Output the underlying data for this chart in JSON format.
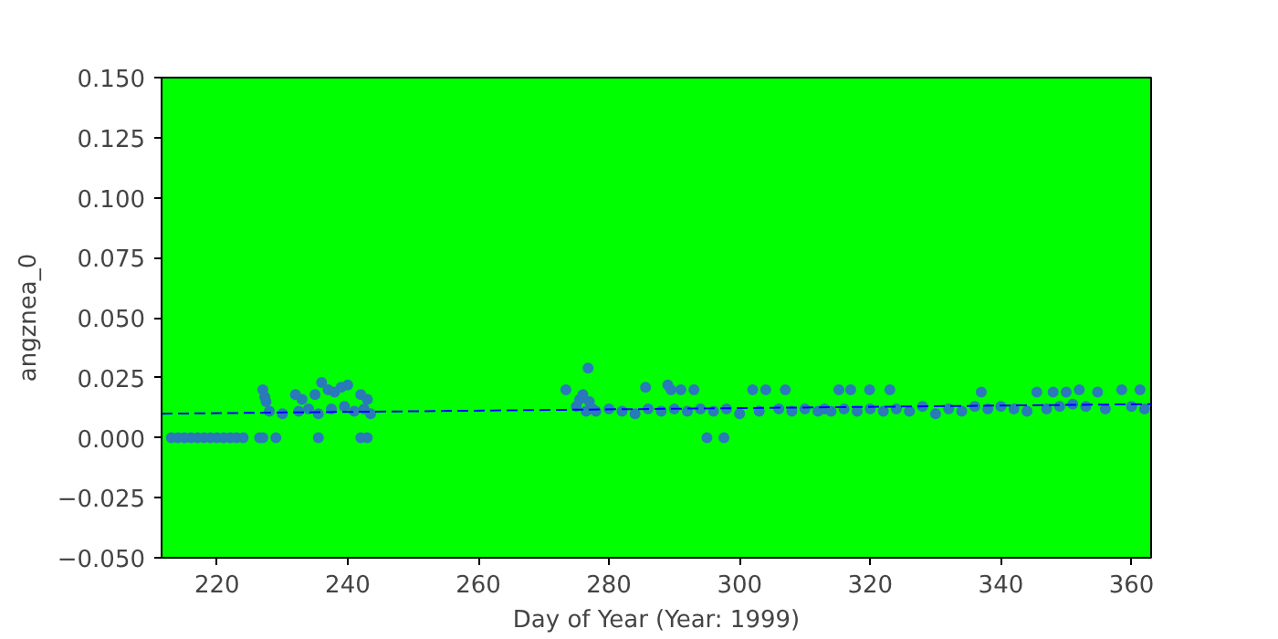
{
  "chart_data": {
    "type": "scatter",
    "xlabel": "Day of Year (Year: 1999)",
    "ylabel": "angznea_0",
    "xlim": [
      211.5,
      363
    ],
    "ylim": [
      -0.05,
      0.15
    ],
    "xticks": [
      220,
      240,
      260,
      280,
      300,
      320,
      340,
      360
    ],
    "yticks": [
      {
        "value": -0.05,
        "label": "−0.050"
      },
      {
        "value": -0.025,
        "label": "−0.025"
      },
      {
        "value": 0,
        "label": "0.000"
      },
      {
        "value": 0.025,
        "label": "0.025"
      },
      {
        "value": 0.05,
        "label": "0.050"
      },
      {
        "value": 0.075,
        "label": "0.075"
      },
      {
        "value": 0.1,
        "label": "0.100"
      },
      {
        "value": 0.125,
        "label": "0.125"
      },
      {
        "value": 0.15,
        "label": "0.150"
      }
    ],
    "grid": false,
    "series": [
      {
        "color": "#2a7ab9",
        "marker": "circle",
        "x": [
          213,
          214,
          215,
          216,
          217,
          218,
          219,
          220,
          221,
          222,
          223,
          224,
          226.5,
          227,
          229,
          235.5,
          242,
          243,
          227,
          227.3,
          227.5,
          228,
          230,
          232,
          232.5,
          233,
          234,
          235,
          235.5,
          236,
          237,
          237.5,
          238,
          239,
          239.5,
          240,
          241,
          242,
          242.5,
          243,
          243.5,
          273.4,
          276.8,
          275,
          275.5,
          276,
          276.5,
          277,
          277.5,
          278,
          280,
          282,
          284,
          285.6,
          286,
          288,
          289,
          289.5,
          290,
          291,
          292,
          293,
          294,
          295,
          296,
          297.6,
          298,
          300,
          302,
          303,
          304,
          306,
          307,
          308,
          310,
          312,
          313,
          315.2,
          317,
          319.9,
          323,
          314,
          316,
          318,
          320,
          322,
          324,
          326,
          328,
          330,
          332,
          334,
          336,
          337,
          338,
          340,
          342,
          344,
          345.5,
          347,
          348,
          349,
          350,
          351,
          352,
          353,
          354.8,
          356,
          358.5,
          360,
          361.3,
          362
        ],
        "values": [
          0,
          0,
          0,
          0,
          0,
          0,
          0,
          0,
          0,
          0,
          0,
          0,
          0,
          0,
          0,
          0,
          0,
          0,
          0.02,
          0.017,
          0.015,
          0.011,
          0.01,
          0.018,
          0.011,
          0.016,
          0.012,
          0.018,
          0.01,
          0.023,
          0.02,
          0.012,
          0.019,
          0.021,
          0.013,
          0.022,
          0.011,
          0.018,
          0.012,
          0.016,
          0.01,
          0.02,
          0.029,
          0.013,
          0.016,
          0.018,
          0.011,
          0.015,
          0.012,
          0.011,
          0.012,
          0.011,
          0.01,
          0.021,
          0.012,
          0.011,
          0.022,
          0.02,
          0.012,
          0.02,
          0.011,
          0.02,
          0.012,
          0,
          0.011,
          0,
          0.012,
          0.01,
          0.02,
          0.011,
          0.02,
          0.012,
          0.02,
          0.011,
          0.012,
          0.011,
          0.012,
          0.02,
          0.02,
          0.02,
          0.02,
          0.011,
          0.012,
          0.011,
          0.012,
          0.011,
          0.012,
          0.011,
          0.013,
          0.01,
          0.012,
          0.011,
          0.013,
          0.019,
          0.012,
          0.013,
          0.012,
          0.011,
          0.019,
          0.012,
          0.019,
          0.013,
          0.019,
          0.014,
          0.02,
          0.013,
          0.019,
          0.012,
          0.02,
          0.013,
          0.02,
          0.012
        ]
      },
      {
        "type": "line",
        "color": "#0000ff",
        "line_style": "dashed",
        "x": [
          211.5,
          363
        ],
        "values": [
          0.01,
          0.014
        ]
      }
    ]
  }
}
